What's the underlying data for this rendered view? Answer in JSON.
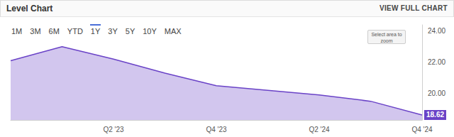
{
  "widget": {
    "title": "Level Chart",
    "link": "VIEW FULL CHART",
    "ranges": [
      "1M",
      "3M",
      "6M",
      "YTD",
      "1Y",
      "3Y",
      "5Y",
      "10Y",
      "MAX"
    ],
    "selected": "1Y",
    "zoom_hint": "Select area to zoom"
  },
  "chart_data": {
    "type": "area",
    "categories": [
      null,
      null,
      "Q2 '23",
      null,
      "Q4 '23",
      null,
      "Q2 '24",
      null,
      "Q4 '24"
    ],
    "values": [
      22.1,
      23.0,
      22.2,
      21.3,
      20.5,
      20.2,
      19.9,
      19.5,
      18.62
    ],
    "color": "#6a43c7",
    "ylim": [
      18.3,
      24.4
    ],
    "yticks": [
      {
        "value": 20,
        "label": "20.00"
      },
      {
        "value": 22,
        "label": "22.00"
      },
      {
        "value": 24,
        "label": "24.00"
      }
    ],
    "grid": false
  }
}
